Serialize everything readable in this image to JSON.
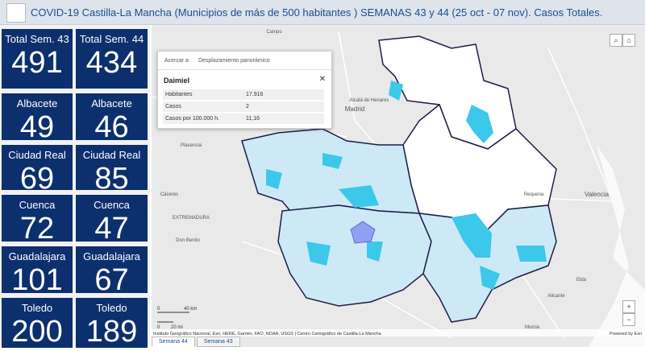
{
  "header": {
    "title": "COVID-19 Castilla-La Mancha (Municipios de más de 500 habitantes ) SEMANAS 43 y 44 (25 oct - 07 nov). Casos Totales."
  },
  "tiles": [
    {
      "label": "Total Sem. 43",
      "value": "491"
    },
    {
      "label": "Total Sem. 44",
      "value": "434"
    },
    {
      "label": "Albacete",
      "value": "49"
    },
    {
      "label": "Albacete",
      "value": "46"
    },
    {
      "label": "Ciudad Real",
      "value": "69"
    },
    {
      "label": "Ciudad Real",
      "value": "85"
    },
    {
      "label": "Cuenca",
      "value": "72"
    },
    {
      "label": "Cuenca",
      "value": "47"
    },
    {
      "label": "Guadalajara",
      "value": "101"
    },
    {
      "label": "Guadalajara",
      "value": "67"
    },
    {
      "label": "Toledo",
      "value": "200"
    },
    {
      "label": "Toledo",
      "value": "189"
    }
  ],
  "popup": {
    "tools": [
      "Acercar a",
      "Desplazamiento panorámico"
    ],
    "title": "Daimiel",
    "rows": [
      [
        "Habitantes",
        "17.916"
      ],
      [
        "Casos",
        "2"
      ],
      [
        "Casos por 100.000 h.",
        "11,16"
      ]
    ]
  },
  "map": {
    "labels": [
      "Madrid",
      "Alcalá de Henares",
      "Plasencia",
      "Cáceres",
      "EXTREMADURA",
      "Don Benito",
      "Valencia",
      "Requena",
      "Alicante",
      "Murcia",
      "Elda",
      "Campo"
    ],
    "scale": [
      "0",
      "40 km",
      "0",
      "20 mi"
    ],
    "attribution": "Instituto Geográfico Nacional, Esri, HERE, Garmin, FAO, NOAA, USGS | Centro Cartográfico de Castilla-La Mancha",
    "powered": "Powered by Esri"
  },
  "tabs": [
    "Semana 44",
    "Semana 43"
  ]
}
